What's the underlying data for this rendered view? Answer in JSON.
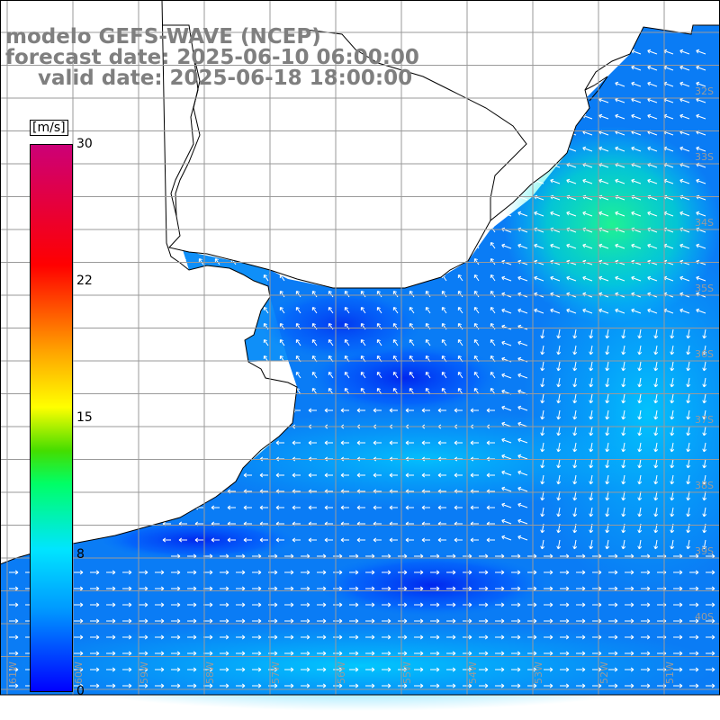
{
  "title": {
    "line1": "modelo GEFS-WAVE (NCEP)",
    "line2": "forecast date: 2025-06-10 06:00:00",
    "line3": "valid date: 2025-06-18 18:00:00"
  },
  "colorbar": {
    "unit": "[m/s]",
    "min": 0,
    "max": 30,
    "ticks": [
      "30",
      "22",
      "15",
      "8",
      "0"
    ],
    "tick_values": [
      30,
      22,
      15,
      8,
      0
    ],
    "colors": [
      "#0000ff",
      "#0099ff",
      "#00e5ff",
      "#00ff66",
      "#44dd00",
      "#ffff00",
      "#ffa500",
      "#ff0000",
      "#cc0077"
    ]
  },
  "map": {
    "lon_labels": [
      "61W",
      "60W",
      "59W",
      "58W",
      "57W",
      "56W",
      "55W",
      "54W",
      "53W",
      "52W",
      "51W"
    ],
    "lat_labels": [
      "32S",
      "33S",
      "34S",
      "35S",
      "36S",
      "37S",
      "38S",
      "39S",
      "40S"
    ],
    "land_color": "#ffffff",
    "grid_color": "#a0a0a0"
  }
}
